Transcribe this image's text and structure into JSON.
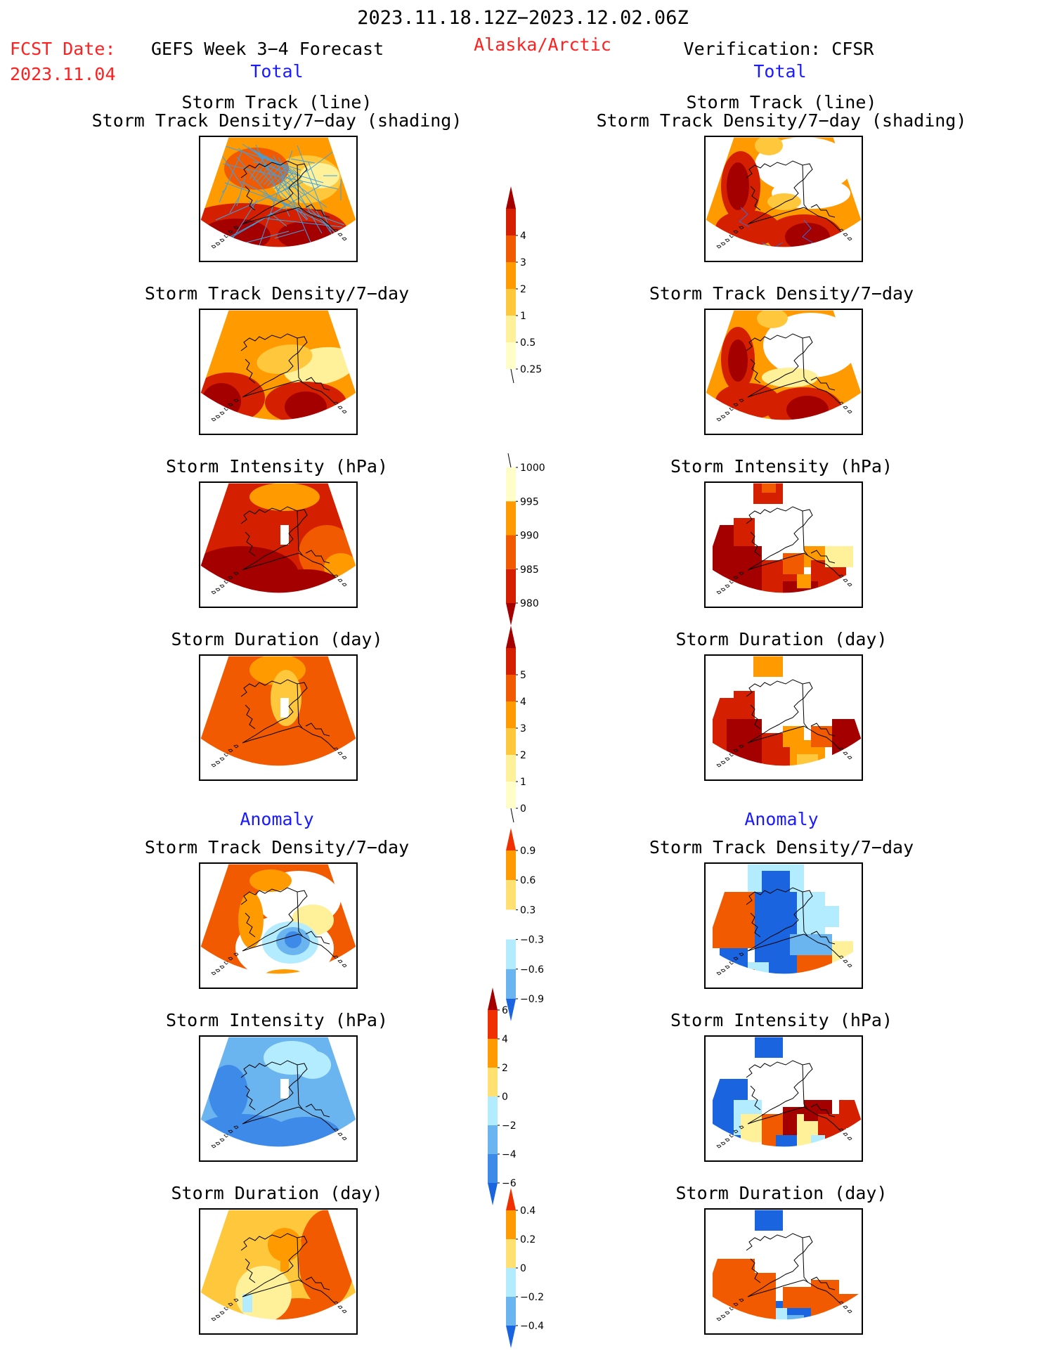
{
  "header": {
    "date_range": "2023.11.18.12Z−2023.12.02.06Z",
    "fcst_label": "FCST Date:",
    "fcst_date": "2023.11.04",
    "forecast_title": "GEFS Week 3−4 Forecast",
    "region": "Alaska/Arctic",
    "verification_title": "Verification: CFSR"
  },
  "sections": {
    "total": "Total",
    "anomaly": "Anomaly"
  },
  "panel_titles": {
    "track_line": "Storm Track (line)",
    "track_shading": "Storm Track Density/7−day (shading)",
    "density": "Storm Track Density/7−day",
    "intensity": "Storm Intensity (hPa)",
    "duration": "Storm Duration (day)"
  },
  "colorbars": {
    "density": {
      "labels": [
        "4",
        "3",
        "2",
        "1",
        "0.5",
        "0.25"
      ],
      "colors": [
        "#a50000",
        "#d42000",
        "#f25a00",
        "#ff9a00",
        "#ffc83c",
        "#fff09a",
        "#fffdc8"
      ]
    },
    "intensity": {
      "labels": [
        "1000",
        "995",
        "990",
        "985",
        "980"
      ],
      "colors": [
        "#fffdc8",
        "#ff9a00",
        "#f25a00",
        "#d42000",
        "#a50000"
      ]
    },
    "duration": {
      "labels": [
        "5",
        "4",
        "3",
        "2",
        "1",
        "0"
      ],
      "colors": [
        "#a50000",
        "#d42000",
        "#f25a00",
        "#ff9a00",
        "#ffc83c",
        "#fff09a",
        "#fffdc8"
      ]
    },
    "anom_density": {
      "labels": [
        "0.9",
        "0.6",
        "0.3",
        "−0.3",
        "−0.6",
        "−0.9"
      ],
      "colors": [
        "#f03000",
        "#ff9a00",
        "#ffe070",
        "#ffffff",
        "#b4ecff",
        "#6ab4f0",
        "#1a64e0"
      ]
    },
    "anom_intensity": {
      "labels": [
        "6",
        "4",
        "2",
        "0",
        "−2",
        "−4",
        "−6"
      ],
      "colors": [
        "#a50000",
        "#f03000",
        "#ff9a00",
        "#ffe070",
        "#b4ecff",
        "#6ab4f0",
        "#3d8ae8",
        "#1a64e0"
      ]
    },
    "anom_duration": {
      "labels": [
        "0.4",
        "0.2",
        "0",
        "−0.2",
        "−0.4"
      ],
      "colors": [
        "#f03000",
        "#ff9a00",
        "#ffe070",
        "#b4ecff",
        "#6ab4f0",
        "#1a64e0"
      ]
    }
  },
  "palette": {
    "dark_red": "#a50000",
    "red": "#d42000",
    "orange_red": "#f25a00",
    "orange": "#ff9a00",
    "light_orange": "#ffc83c",
    "yellow": "#fff09a",
    "pale_yellow": "#fffdc8",
    "light_blue": "#b4ecff",
    "mid_blue": "#6ab4f0",
    "blue": "#3d8ae8",
    "dark_blue": "#1a64e0",
    "track_line": "#3ea0e0"
  }
}
